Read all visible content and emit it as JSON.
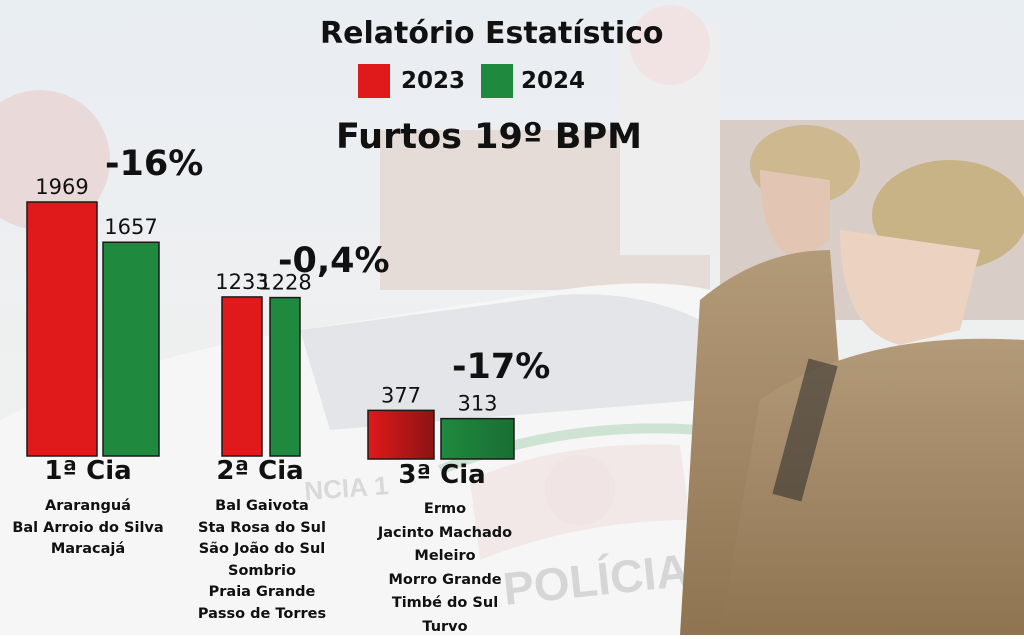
{
  "title": "Relatório Estatístico",
  "subtitle": "Furtos 19º BPM",
  "legend": [
    {
      "label": "2023",
      "color": "#e0191b"
    },
    {
      "label": "2024",
      "color": "#1f8a3e"
    }
  ],
  "chart_data": {
    "type": "bar",
    "categories": [
      "1ª Cia",
      "2ª Cia",
      "3ª Cia"
    ],
    "series": [
      {
        "name": "2023",
        "values": [
          1969,
          1233,
          377
        ],
        "color": "#e0191b"
      },
      {
        "name": "2024",
        "values": [
          1657,
          1228,
          313
        ],
        "color": "#1f8a3e"
      }
    ],
    "change_labels": [
      "-16%",
      "-0,4%",
      "-17%"
    ],
    "title": "Relatório Estatístico",
    "subtitle": "Furtos 19º BPM",
    "xlabel": "",
    "ylabel": "",
    "grid": false,
    "legend_position": "top"
  },
  "groups": [
    {
      "label": "1ª Cia",
      "cities": [
        "Araranguá",
        "Bal Arroio do Silva",
        "Maracajá"
      ]
    },
    {
      "label": "2ª Cia",
      "cities": [
        "Bal Gaivota",
        "Sta Rosa do Sul",
        "São João do Sul",
        "Sombrio",
        "Praia Grande",
        "Passo de Torres"
      ]
    },
    {
      "label": "3ª Cia",
      "cities": [
        "Ermo",
        "Jacinto Machado",
        "Meleiro",
        "Morro Grande",
        "Timbé do Sul",
        "Turvo"
      ]
    }
  ],
  "background_texts": {
    "car_text_1": "POLÍCIA MILI",
    "car_text_2": "NCIA 1"
  }
}
